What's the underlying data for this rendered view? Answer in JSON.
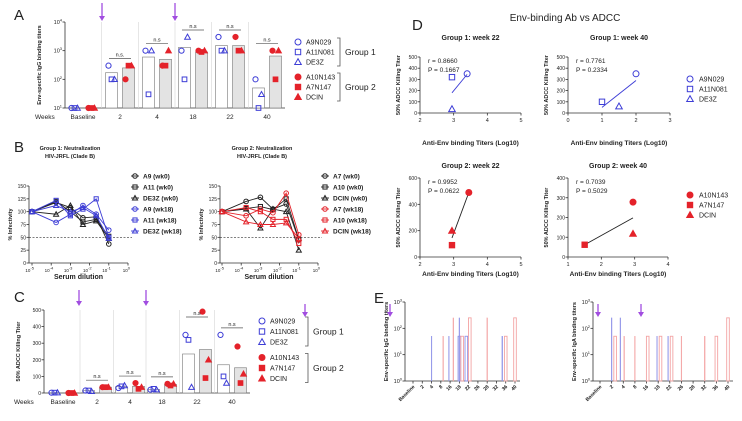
{
  "panel_labels": {
    "A": "A",
    "B": "B",
    "C": "C",
    "D": "D",
    "E": "E"
  },
  "colors": {
    "group1": "#3d3dd6",
    "group2": "#e4222a",
    "arrow": "#a14de0",
    "bar_group2": "#e3e3e3",
    "e_blue": "#8f93e8",
    "e_pink": "#f3a3a3",
    "wk0": "#222222"
  },
  "groups": [
    {
      "label": "Group 1",
      "subjects": [
        {
          "id": "A9N029",
          "shape": "circle"
        },
        {
          "id": "A11N081",
          "shape": "square"
        },
        {
          "id": "DE3Z",
          "shape": "triangle"
        }
      ]
    },
    {
      "label": "Group 2",
      "subjects": [
        {
          "id": "A10N143",
          "shape": "circle"
        },
        {
          "id": "A7N147",
          "shape": "square"
        },
        {
          "id": "DCIN",
          "shape": "triangle"
        }
      ]
    }
  ],
  "chart_data": [
    {
      "panel": "A",
      "type": "bar",
      "ylabel": "Env-specific IgG binding titers",
      "yscale": "log",
      "ylim": [
        10,
        10000
      ],
      "yticks": [
        10,
        100,
        1000,
        10000
      ],
      "xlabel": "Weeks",
      "categories": [
        "Baseline",
        "2",
        "4",
        "18",
        "22",
        "40"
      ],
      "significance": [
        "",
        "n.s.",
        "n.s",
        "n.s",
        "n.s",
        "n.s"
      ],
      "series": [
        {
          "name": "Group 1",
          "bar": [
            10,
            170,
            600,
            1300,
            1500,
            50
          ],
          "points": {
            "A9N029": [
              10,
              300,
              1000,
              1000,
              3000,
              100
            ],
            "A11N081": [
              10,
              100,
              30,
              100,
              1000,
              10
            ],
            "DE3Z": [
              10,
              100,
              1000,
              3000,
              1000,
              30
            ]
          }
        },
        {
          "name": "Group 2",
          "bar": [
            10,
            250,
            500,
            900,
            1500,
            650
          ],
          "points": {
            "A10N143": [
              10,
              100,
              300,
              1000,
              3000,
              1000
            ],
            "A7N147": [
              10,
              300,
              300,
              900,
              1000,
              100
            ],
            "DCIN": [
              10,
              300,
              1000,
              1000,
              1000,
              1000
            ]
          }
        }
      ]
    },
    {
      "panel": "B-left",
      "type": "line",
      "title": [
        "Group 1: Neutralization",
        "HIV-JRFL (Clade B)"
      ],
      "xlabel": "Serum dilution",
      "ylabel": "% Infectivity",
      "xscale": "log",
      "xlim": [
        1e-05,
        1
      ],
      "xticks": [
        1e-05,
        0.0001,
        0.001,
        0.01,
        0.1,
        1
      ],
      "ylim": [
        0,
        150
      ],
      "yticks": [
        0,
        25,
        50,
        75,
        100,
        125,
        150
      ],
      "reference_line": 50,
      "x": [
        1e-05,
        0.00018,
        0.001,
        0.0045,
        0.022,
        0.1
      ],
      "series": [
        {
          "name": "A9 (wk0)",
          "shape": "circle",
          "color": "wk0",
          "values": [
            100,
            118,
            108,
            88,
            90,
            37
          ]
        },
        {
          "name": "A11 (wk0)",
          "shape": "square",
          "color": "wk0",
          "values": [
            100,
            120,
            100,
            80,
            85,
            52
          ]
        },
        {
          "name": "DE3Z (wk0)",
          "shape": "triangle",
          "color": "wk0",
          "values": [
            100,
            95,
            112,
            75,
            82,
            48
          ]
        },
        {
          "name": "A9 (wk18)",
          "shape": "circle",
          "color": "group1",
          "values": [
            100,
            79,
            95,
            112,
            95,
            64
          ]
        },
        {
          "name": "A11 (wk18)",
          "shape": "square",
          "color": "group1",
          "values": [
            100,
            122,
            92,
            105,
            125,
            50
          ]
        },
        {
          "name": "DE3Z (wk18)",
          "shape": "triangle",
          "color": "group1",
          "values": [
            100,
            112,
            100,
            108,
            92,
            48
          ]
        }
      ]
    },
    {
      "panel": "B-right",
      "type": "line",
      "title": [
        "Group 2: Neutralization",
        "HIV-JRFL (Clade B)"
      ],
      "xlabel": "Serum dilution",
      "ylabel": "% Infectivity",
      "xscale": "log",
      "xlim": [
        1e-05,
        1
      ],
      "xticks": [
        1e-05,
        0.0001,
        0.001,
        0.01,
        0.1,
        1
      ],
      "ylim": [
        0,
        150
      ],
      "yticks": [
        0,
        25,
        50,
        75,
        100,
        125,
        150
      ],
      "reference_line": 50,
      "x": [
        1e-05,
        0.00018,
        0.001,
        0.0045,
        0.022,
        0.1
      ],
      "series": [
        {
          "name": "A7 (wk0)",
          "shape": "circle",
          "color": "wk0",
          "values": [
            100,
            120,
            128,
            105,
            115,
            45
          ]
        },
        {
          "name": "A10 (wk0)",
          "shape": "square",
          "color": "wk0",
          "values": [
            100,
            106,
            110,
            104,
            125,
            46
          ]
        },
        {
          "name": "DCIN (wk0)",
          "shape": "triangle",
          "color": "wk0",
          "values": [
            100,
            105,
            68,
            105,
            100,
            25
          ]
        },
        {
          "name": "A7 (wk18)",
          "shape": "circle",
          "color": "group2",
          "values": [
            100,
            92,
            105,
            98,
            136,
            55
          ]
        },
        {
          "name": "A10 (wk18)",
          "shape": "square",
          "color": "group2",
          "values": [
            100,
            108,
            100,
            85,
            85,
            38
          ]
        },
        {
          "name": "DCIN (wk18)",
          "shape": "triangle",
          "color": "group2",
          "values": [
            100,
            80,
            75,
            75,
            78,
            48
          ]
        }
      ]
    },
    {
      "panel": "C",
      "type": "bar",
      "ylabel": "50% ADCC Killing Titer",
      "ylim": [
        0,
        500
      ],
      "yticks": [
        0,
        100,
        200,
        300,
        400,
        500
      ],
      "xlabel": "Weeks",
      "categories": [
        "Baseline",
        "2",
        "4",
        "18",
        "22",
        "40"
      ],
      "significance": [
        "",
        "n.s",
        "n.s",
        "n.s",
        "n.s",
        "n.s"
      ],
      "series": [
        {
          "name": "Group 1",
          "bar": [
            0,
            15,
            38,
            22,
            235,
            170
          ],
          "points": {
            "A9N029": [
              2,
              15,
              30,
              20,
              350,
              350
            ],
            "A11N081": [
              2,
              15,
              40,
              25,
              320,
              100
            ],
            "DE3Z": [
              2,
              10,
              45,
              20,
              35,
              60
            ]
          }
        },
        {
          "name": "Group 2",
          "bar": [
            0,
            35,
            40,
            52,
            262,
            152
          ],
          "points": {
            "A10N143": [
              0,
              35,
              60,
              55,
              490,
              280
            ],
            "A7N147": [
              0,
              35,
              25,
              45,
              90,
              60
            ],
            "DCIN": [
              0,
              35,
              35,
              55,
              200,
              115
            ]
          }
        }
      ]
    },
    {
      "panel": "D1",
      "type": "scatter",
      "title": "Group 1: week 22",
      "group": 0,
      "xlabel": "Anti-Env binding Titers (Log10)",
      "ylabel": "50% ADCC Killing Titer",
      "xlim": [
        2,
        5
      ],
      "xticks": [
        2,
        3,
        4,
        5
      ],
      "ylim": [
        0,
        500
      ],
      "yticks": [
        0,
        100,
        200,
        300,
        400,
        500
      ],
      "stats": [
        "r = 0.8660",
        "P = 0.1667"
      ],
      "points": [
        {
          "id": "A9N029",
          "x": 3.4,
          "y": 350
        },
        {
          "id": "A11N081",
          "x": 2.95,
          "y": 320
        },
        {
          "id": "DE3Z",
          "x": 2.95,
          "y": 35
        }
      ],
      "fit": [
        [
          2.95,
          180
        ],
        [
          3.4,
          345
        ]
      ]
    },
    {
      "panel": "D2",
      "type": "scatter",
      "title": "Group 1: week 40",
      "group": 0,
      "xlabel": "Anti-Env binding Titers (Log10)",
      "ylabel": "50% ADCC Killing Titer",
      "xlim": [
        0,
        3
      ],
      "xticks": [
        0,
        1,
        2,
        3
      ],
      "ylim": [
        0,
        500
      ],
      "yticks": [
        0,
        100,
        200,
        300,
        400,
        500
      ],
      "stats": [
        "r = 0.7761",
        "P = 0.2334"
      ],
      "points": [
        {
          "id": "A9N029",
          "x": 2.0,
          "y": 350
        },
        {
          "id": "A11N081",
          "x": 1.0,
          "y": 100
        },
        {
          "id": "DE3Z",
          "x": 1.5,
          "y": 60
        }
      ],
      "fit": [
        [
          1.0,
          50
        ],
        [
          2.0,
          290
        ]
      ]
    },
    {
      "panel": "D3",
      "type": "scatter",
      "title": "Group 2: week 22",
      "group": 1,
      "xlabel": "Anti-Env binding Titers (Log10)",
      "ylabel": "50% ADCC Killing Titer",
      "xlim": [
        2,
        5
      ],
      "xticks": [
        2,
        3,
        4,
        5
      ],
      "ylim": [
        0,
        600
      ],
      "yticks": [
        0,
        200,
        400,
        600
      ],
      "stats": [
        "r = 0.9952",
        "P = 0.0622"
      ],
      "points": [
        {
          "id": "A10N143",
          "x": 3.45,
          "y": 490
        },
        {
          "id": "A7N147",
          "x": 2.95,
          "y": 90
        },
        {
          "id": "DCIN",
          "x": 2.95,
          "y": 200
        }
      ],
      "fit": [
        [
          2.95,
          145
        ],
        [
          3.45,
          490
        ]
      ]
    },
    {
      "panel": "D4",
      "type": "scatter",
      "title": "Group 2: week 40",
      "group": 1,
      "xlabel": "Anti-Env binding Titers (Log10)",
      "ylabel": "50% ADCC Killing Titer",
      "xlim": [
        1,
        4
      ],
      "xticks": [
        1,
        2,
        3,
        4
      ],
      "ylim": [
        0,
        400
      ],
      "yticks": [
        0,
        100,
        200,
        300,
        400
      ],
      "stats": [
        "r = 0.7039",
        "P = 0.5029"
      ],
      "points": [
        {
          "id": "A10N143",
          "x": 2.95,
          "y": 278
        },
        {
          "id": "A7N147",
          "x": 1.5,
          "y": 62
        },
        {
          "id": "DCIN",
          "x": 2.95,
          "y": 118
        }
      ],
      "fit": [
        [
          1.5,
          62
        ],
        [
          2.95,
          198
        ]
      ]
    },
    {
      "panel": "E-left",
      "type": "bar",
      "ylabel": "Env-specific IgG binding titers",
      "yscale": "log",
      "ylim": [
        1,
        1000
      ],
      "yticks": [
        1,
        10,
        100,
        1000
      ],
      "categories": [
        "Baseline",
        "2",
        "4",
        "8",
        "16",
        "18",
        "22",
        "26",
        "28",
        "32",
        "36",
        "40"
      ],
      "bars": [
        {
          "week": 4,
          "value": 50,
          "color": "e_blue"
        },
        {
          "week": 10,
          "value": 50,
          "color": "e_pink"
        },
        {
          "week": 15,
          "value": 50,
          "color": "e_blue"
        },
        {
          "week": 16.7,
          "value": 250,
          "color": "e_pink"
        },
        {
          "week": 18,
          "value": 250,
          "color": "e_blue"
        },
        {
          "week": 18,
          "value": 50,
          "color": "e_blue",
          "thick": true
        },
        {
          "week": 19.2,
          "value": 50,
          "color": "e_pink",
          "thick": true
        },
        {
          "week": 21,
          "value": 50,
          "color": "e_blue",
          "thick": true
        },
        {
          "week": 22.5,
          "value": 250,
          "color": "e_pink",
          "thick": true
        },
        {
          "week": 28,
          "value": 250,
          "color": "e_pink"
        },
        {
          "week": 34.5,
          "value": 50,
          "color": "e_blue"
        },
        {
          "week": 36,
          "value": 50,
          "color": "e_pink",
          "thick": true
        },
        {
          "week": 40,
          "value": 250,
          "color": "e_pink",
          "thick": true
        }
      ]
    },
    {
      "panel": "E-right",
      "type": "bar",
      "ylabel": "Env-specific IgA binding titers",
      "yscale": "log",
      "ylim": [
        1,
        1000
      ],
      "yticks": [
        1,
        10,
        100,
        1000
      ],
      "categories": [
        "Baseline",
        "2",
        "4",
        "8",
        "16",
        "18",
        "22",
        "26",
        "28",
        "32",
        "36",
        "40"
      ],
      "bars": [
        {
          "week": 2,
          "value": 250,
          "color": "e_blue"
        },
        {
          "week": 2.6,
          "value": 50,
          "color": "e_pink",
          "thick": true
        },
        {
          "week": 3.5,
          "value": 250,
          "color": "e_blue"
        },
        {
          "week": 4.3,
          "value": 50,
          "color": "e_pink"
        },
        {
          "week": 8,
          "value": 50,
          "color": "e_pink"
        },
        {
          "week": 16.2,
          "value": 50,
          "color": "e_pink",
          "thick": true
        },
        {
          "week": 17.8,
          "value": 50,
          "color": "e_blue"
        },
        {
          "week": 18.8,
          "value": 50,
          "color": "e_pink",
          "thick": true
        },
        {
          "week": 21.4,
          "value": 50,
          "color": "e_blue"
        },
        {
          "week": 22.6,
          "value": 50,
          "color": "e_pink",
          "thick": true
        },
        {
          "week": 26,
          "value": 50,
          "color": "e_pink"
        },
        {
          "week": 32,
          "value": 50,
          "color": "e_pink"
        },
        {
          "week": 36,
          "value": 50,
          "color": "e_pink",
          "thick": true
        },
        {
          "week": 40,
          "value": 250,
          "color": "e_pink",
          "thick": true
        }
      ]
    }
  ],
  "panel_d_title": "Env-binding Ab vs ADCC"
}
